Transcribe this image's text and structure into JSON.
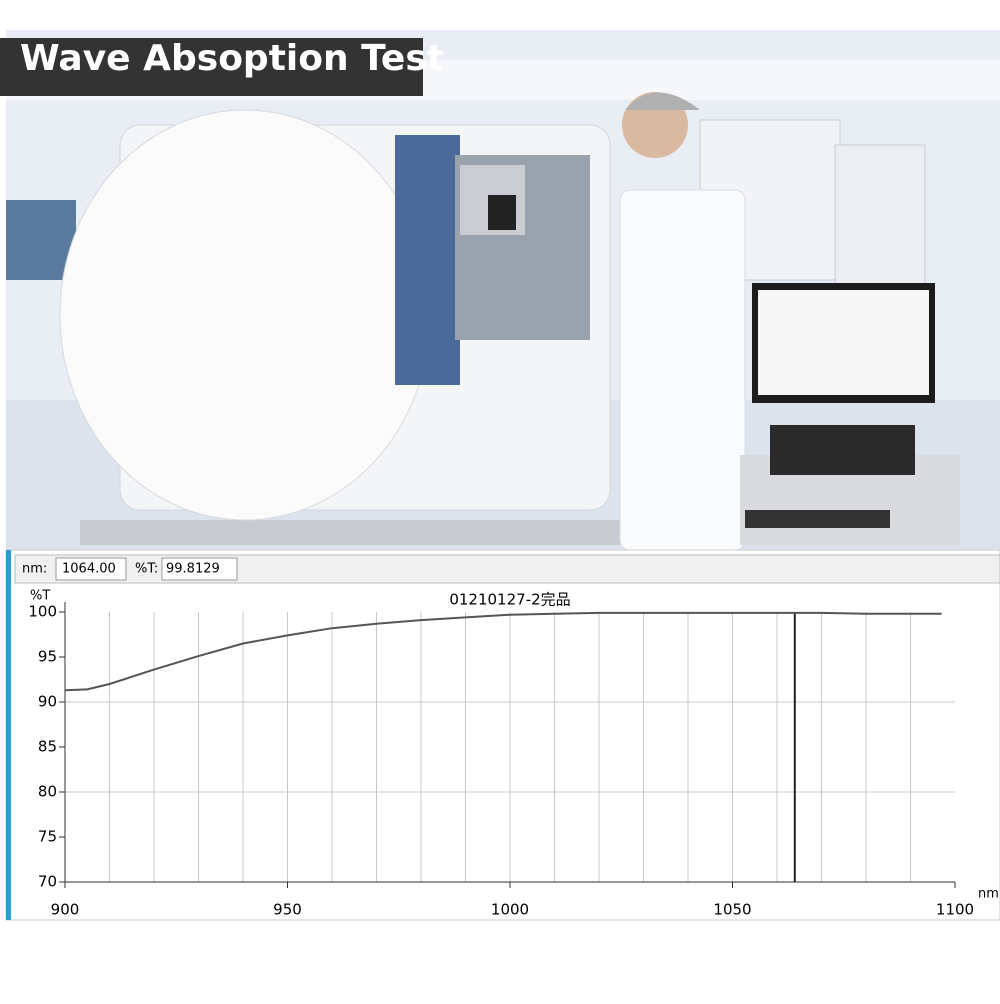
{
  "banner": "Wave Absoption Test",
  "readout": {
    "x_label": "nm:",
    "x": {
      "value": 1064,
      "label": "1064.00"
    },
    "y_label": "%T:",
    "y": 99.8129
  },
  "chart_data": {
    "type": "line",
    "title": "01210127-2完品",
    "x_label": "nm",
    "y_label": "%T",
    "x": [
      900,
      905,
      910,
      920,
      930,
      940,
      950,
      960,
      970,
      980,
      990,
      1000,
      1010,
      1020,
      1030,
      1040,
      1050,
      1060,
      1070,
      1080,
      1090,
      1097
    ],
    "series": [
      {
        "name": "01210127-2完品",
        "color": "#555555",
        "values": [
          91.3,
          91.4,
          92.0,
          93.6,
          95.1,
          96.5,
          97.4,
          98.2,
          98.7,
          99.1,
          99.4,
          99.7,
          99.8,
          99.9,
          99.9,
          99.9,
          99.9,
          99.9,
          99.9,
          99.8,
          99.8,
          99.8
        ]
      }
    ],
    "xlim": [
      900,
      1100
    ],
    "ylim": [
      70,
      100
    ],
    "xticks": [
      900,
      950,
      1000,
      1050,
      1100
    ],
    "yticks": [
      70,
      75,
      80,
      85,
      90,
      95,
      100
    ],
    "xgrid": [
      910,
      920,
      930,
      940,
      950,
      960,
      970,
      980,
      990,
      1000,
      1010,
      1020,
      1030,
      1040,
      1050,
      1060,
      1070,
      1080,
      1090
    ],
    "ygrid": [
      80,
      90
    ],
    "grid": true
  }
}
